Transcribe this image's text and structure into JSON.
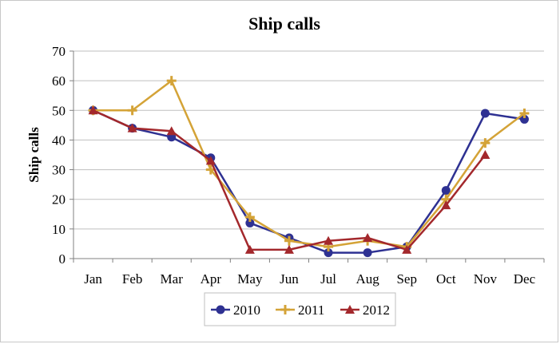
{
  "chart_data": {
    "type": "line",
    "title": "Ship calls",
    "xlabel": "",
    "ylabel": "Ship calls",
    "ylim": [
      0,
      70
    ],
    "yticks": [
      "0",
      "10",
      "20",
      "30",
      "40",
      "50",
      "60",
      "70"
    ],
    "grid": true,
    "legend_position": "bottom",
    "categories": [
      "Jan",
      "Feb",
      "Mar",
      "Apr",
      "May",
      "Jun",
      "Jul",
      "Aug",
      "Sep",
      "Oct",
      "Nov",
      "Dec"
    ],
    "series": [
      {
        "name": "2010",
        "color": "#2e3192",
        "marker": "circle",
        "values": [
          50,
          44,
          41,
          34,
          12,
          7,
          2,
          2,
          4,
          23,
          49,
          47
        ]
      },
      {
        "name": "2011",
        "color": "#d4a337",
        "marker": "plus",
        "values": [
          50,
          50,
          60,
          30,
          14,
          6,
          4,
          6,
          4,
          20,
          39,
          49
        ]
      },
      {
        "name": "2012",
        "color": "#a3282c",
        "marker": "triangle",
        "values": [
          50,
          44,
          43,
          33,
          3,
          3,
          6,
          7,
          3,
          18,
          35,
          null
        ]
      }
    ]
  }
}
